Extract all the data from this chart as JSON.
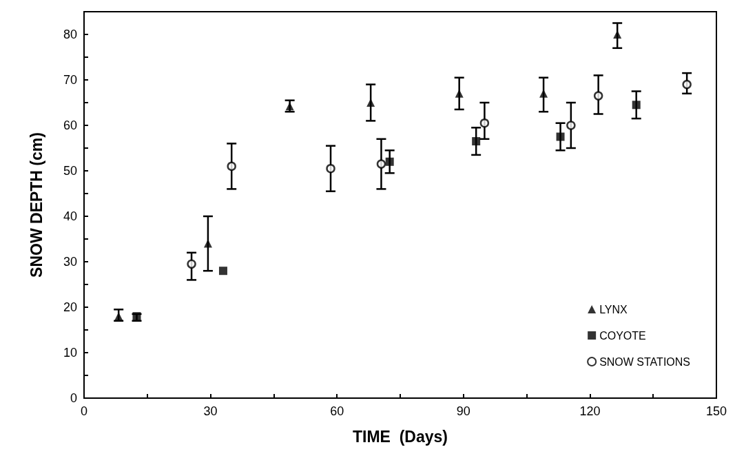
{
  "chart_data": {
    "type": "scatter",
    "xlabel": "TIME  (Days)",
    "ylabel": "SNOW DEPTH (cm)",
    "xlim": [
      0,
      150
    ],
    "xticks": [
      0,
      {
        "value": 15,
        "label": null
      },
      30,
      {
        "value": 45,
        "label": null
      },
      60,
      {
        "value": 75,
        "label": null
      },
      90,
      {
        "value": 105,
        "label": null
      },
      120,
      {
        "value": 135,
        "label": null
      },
      150
    ],
    "ylim": [
      0,
      85
    ],
    "yticks": [
      0,
      {
        "value": 5,
        "label": null
      },
      10,
      {
        "value": 15,
        "label": null
      },
      20,
      {
        "value": 25,
        "label": null
      },
      30,
      {
        "value": 35,
        "label": null
      },
      40,
      {
        "value": 45,
        "label": null
      },
      50,
      {
        "value": 55,
        "label": null
      },
      60,
      {
        "value": 65,
        "label": null
      },
      70,
      {
        "value": 75,
        "label": null
      },
      80
    ],
    "grid": false,
    "legend": "bottom right",
    "series": [
      {
        "name": "LYNX",
        "color": "#000000",
        "marker": "triangle",
        "x": [
          8.2,
          29.4,
          48.8,
          68,
          89,
          109,
          126.5
        ],
        "values": [
          18,
          34,
          64.2,
          65,
          67,
          67,
          80
        ],
        "errors": [
          [
            17,
            19.5
          ],
          [
            28,
            40
          ],
          [
            63,
            65.5
          ],
          [
            61,
            69
          ],
          [
            63.5,
            70.5
          ],
          [
            63,
            70.5
          ],
          [
            77,
            82.5
          ]
        ]
      },
      {
        "name": "COYOTE",
        "color": "#000000",
        "marker": "square",
        "x": [
          12.5,
          33,
          72.5,
          93,
          113,
          131
        ],
        "values": [
          18,
          28,
          52,
          56.5,
          57.5,
          64.5
        ],
        "errors": [
          [
            17,
            18.5
          ],
          null,
          [
            49.5,
            54.5
          ],
          [
            53.5,
            59.5
          ],
          [
            54.5,
            60.5
          ],
          [
            61.5,
            67.5
          ]
        ]
      },
      {
        "name": "SNOW STATIONS",
        "color": "#000000",
        "marker": "circle",
        "x": [
          25.5,
          35,
          58.5,
          70.5,
          95,
          115.5,
          122,
          143
        ],
        "values": [
          29.5,
          51,
          50.5,
          51.5,
          60.5,
          60,
          66.5,
          69
        ],
        "errors": [
          [
            26,
            32
          ],
          [
            46,
            56
          ],
          [
            45.5,
            55.5
          ],
          [
            46,
            57
          ],
          [
            57,
            65
          ],
          [
            55,
            65
          ],
          [
            62.5,
            71
          ],
          [
            67,
            71.5
          ]
        ]
      }
    ]
  }
}
